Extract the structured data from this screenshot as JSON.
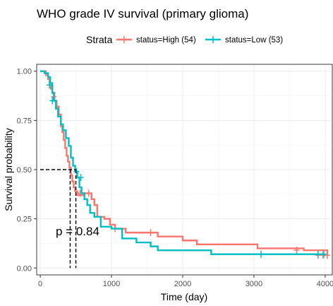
{
  "chart_data": {
    "type": "line",
    "title": "WHO grade IV survival (primary glioma)",
    "xlabel": "Time (day)",
    "ylabel": "Survival probability",
    "xlim": [
      -50,
      4100
    ],
    "ylim": [
      -0.035,
      1.035
    ],
    "x_ticks": [
      0,
      1000,
      2000,
      3000,
      4000
    ],
    "x_tick_labels": [
      "0",
      "1000",
      "2000",
      "3000",
      "4000"
    ],
    "y_ticks": [
      0,
      0.25,
      0.5,
      0.75,
      1.0
    ],
    "y_tick_labels": [
      "0.00",
      "0.25",
      "0.50",
      "0.75",
      "1.00"
    ],
    "grid": true,
    "legend": {
      "title": "Strata",
      "position": "top"
    },
    "annotation": "p = 0.84",
    "median_survival": {
      "y": 0.5,
      "x_values": [
        420,
        500
      ]
    },
    "series": [
      {
        "name": "status=High (54)",
        "color": "#F8766D",
        "steps": [
          [
            0,
            1.0
          ],
          [
            80,
            0.98
          ],
          [
            110,
            0.96
          ],
          [
            130,
            0.93
          ],
          [
            150,
            0.91
          ],
          [
            170,
            0.89
          ],
          [
            200,
            0.85
          ],
          [
            230,
            0.82
          ],
          [
            260,
            0.78
          ],
          [
            290,
            0.72
          ],
          [
            310,
            0.69
          ],
          [
            330,
            0.65
          ],
          [
            350,
            0.61
          ],
          [
            370,
            0.57
          ],
          [
            390,
            0.54
          ],
          [
            410,
            0.51
          ],
          [
            430,
            0.47
          ],
          [
            450,
            0.44
          ],
          [
            470,
            0.41
          ],
          [
            490,
            0.39
          ],
          [
            520,
            0.37
          ],
          [
            600,
            0.38
          ],
          [
            720,
            0.35
          ],
          [
            760,
            0.32
          ],
          [
            800,
            0.26
          ],
          [
            900,
            0.25
          ],
          [
            980,
            0.22
          ],
          [
            1050,
            0.2
          ],
          [
            1200,
            0.18
          ],
          [
            1650,
            0.16
          ],
          [
            2000,
            0.14
          ],
          [
            2200,
            0.12
          ],
          [
            3050,
            0.1
          ],
          [
            3700,
            0.09
          ],
          [
            4030,
            0.065
          ]
        ],
        "censored": [
          [
            190,
            0.87
          ],
          [
            560,
            0.38
          ],
          [
            680,
            0.38
          ],
          [
            1050,
            0.2
          ],
          [
            1550,
            0.18
          ],
          [
            3600,
            0.09
          ],
          [
            3900,
            0.065
          ],
          [
            3970,
            0.065
          ],
          [
            4030,
            0.065
          ]
        ]
      },
      {
        "name": "status=Low (53)",
        "color": "#00BFC4",
        "steps": [
          [
            0,
            1.0
          ],
          [
            60,
            0.99
          ],
          [
            110,
            0.97
          ],
          [
            140,
            0.94
          ],
          [
            170,
            0.89
          ],
          [
            190,
            0.85
          ],
          [
            220,
            0.81
          ],
          [
            250,
            0.77
          ],
          [
            290,
            0.73
          ],
          [
            320,
            0.7
          ],
          [
            360,
            0.66
          ],
          [
            400,
            0.62
          ],
          [
            430,
            0.56
          ],
          [
            460,
            0.52
          ],
          [
            490,
            0.49
          ],
          [
            520,
            0.46
          ],
          [
            550,
            0.41
          ],
          [
            580,
            0.38
          ],
          [
            620,
            0.35
          ],
          [
            660,
            0.32
          ],
          [
            700,
            0.28
          ],
          [
            760,
            0.26
          ],
          [
            850,
            0.21
          ],
          [
            1000,
            0.2
          ],
          [
            1150,
            0.15
          ],
          [
            1350,
            0.13
          ],
          [
            1550,
            0.11
          ],
          [
            1650,
            0.09
          ],
          [
            2400,
            0.07
          ],
          [
            4000,
            0.07
          ]
        ],
        "censored": [
          [
            130,
            0.93
          ],
          [
            170,
            0.85
          ],
          [
            510,
            0.49
          ],
          [
            570,
            0.46
          ],
          [
            3100,
            0.07
          ],
          [
            3900,
            0.07
          ],
          [
            3980,
            0.07
          ]
        ]
      }
    ]
  }
}
